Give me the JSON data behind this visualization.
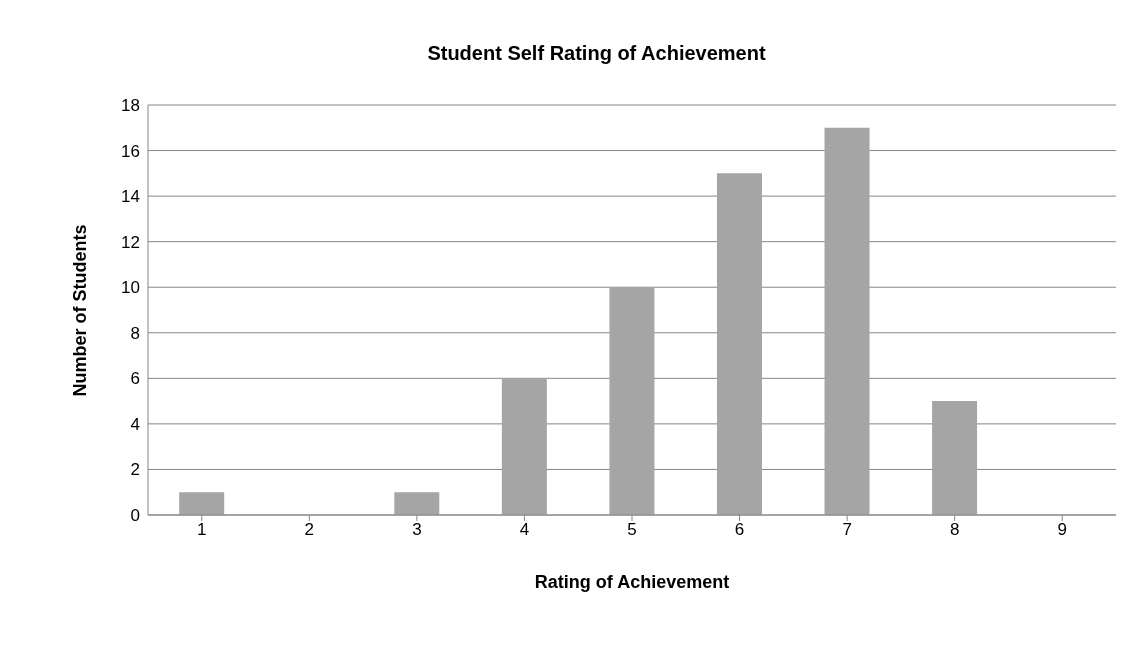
{
  "chart_data": {
    "type": "bar",
    "title": "Student Self Rating of Achievement",
    "xlabel": "Rating of Achievement",
    "ylabel": "Number of Students",
    "categories": [
      "1",
      "2",
      "3",
      "4",
      "5",
      "6",
      "7",
      "8",
      "9"
    ],
    "values": [
      1,
      0,
      1,
      6,
      10,
      15,
      17,
      5,
      0
    ],
    "color": "#a5a5a5",
    "ylim": [
      0,
      18
    ],
    "yticks": [
      0,
      2,
      4,
      6,
      8,
      10,
      12,
      14,
      16,
      18
    ],
    "grid": "y"
  }
}
